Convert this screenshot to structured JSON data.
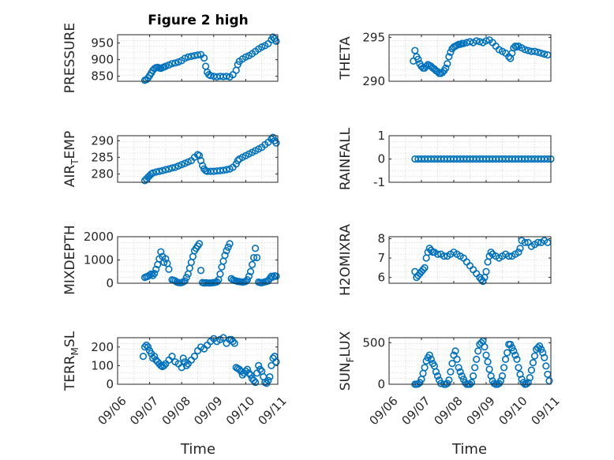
{
  "figure": {
    "title": "Figure 2 high",
    "xlabel": "Time",
    "marker_color": "#0072BD",
    "axis_color": "#262626",
    "grid_color": "#d9d9d9"
  },
  "chart_data": [
    {
      "type": "scatter",
      "ylabel": "PRESSURE",
      "xlim": [
        0,
        5
      ],
      "ylim": [
        835,
        975
      ],
      "yticks": [
        850,
        900,
        950
      ],
      "x": [
        0.85,
        0.9,
        0.95,
        1.0,
        1.05,
        1.1,
        1.15,
        1.2,
        1.25,
        1.3,
        1.35,
        1.4,
        1.45,
        1.5,
        1.6,
        1.7,
        1.8,
        1.9,
        2.0,
        2.1,
        2.2,
        2.3,
        2.4,
        2.5,
        2.6,
        2.7,
        2.75,
        2.8,
        2.85,
        2.9,
        3.0,
        3.1,
        3.2,
        3.3,
        3.4,
        3.5,
        3.6,
        3.7,
        3.75,
        3.8,
        3.9,
        4.0,
        4.1,
        4.2,
        4.3,
        4.4,
        4.5,
        4.6,
        4.7,
        4.8,
        4.85,
        4.9,
        4.95
      ],
      "y": [
        838,
        840,
        845,
        852,
        860,
        868,
        873,
        876,
        877,
        875,
        874,
        876,
        878,
        880,
        884,
        888,
        890,
        893,
        897,
        904,
        908,
        910,
        912,
        914,
        915,
        905,
        880,
        862,
        855,
        852,
        850,
        848,
        850,
        849,
        850,
        848,
        855,
        868,
        885,
        895,
        902,
        908,
        912,
        918,
        925,
        932,
        938,
        942,
        948,
        960,
        968,
        963,
        955
      ]
    },
    {
      "type": "scatter",
      "ylabel": "THETA",
      "xlim": [
        0,
        5
      ],
      "ylim": [
        290,
        295.3
      ],
      "yticks": [
        290,
        295
      ],
      "x": [
        0.75,
        0.8,
        0.85,
        0.9,
        0.95,
        1.0,
        1.05,
        1.1,
        1.15,
        1.2,
        1.25,
        1.3,
        1.35,
        1.4,
        1.45,
        1.5,
        1.55,
        1.6,
        1.65,
        1.7,
        1.75,
        1.8,
        1.85,
        1.9,
        1.95,
        2.0,
        2.05,
        2.1,
        2.15,
        2.2,
        2.25,
        2.3,
        2.4,
        2.5,
        2.6,
        2.7,
        2.8,
        2.9,
        3.0,
        3.1,
        3.2,
        3.3,
        3.4,
        3.5,
        3.6,
        3.7,
        3.75,
        3.8,
        3.85,
        3.9,
        3.95,
        4.0,
        4.1,
        4.2,
        4.3,
        4.4,
        4.5,
        4.6,
        4.7,
        4.8,
        4.9
      ],
      "y": [
        292.3,
        293.5,
        292.8,
        292.5,
        292.0,
        291.7,
        291.5,
        291.5,
        291.7,
        291.9,
        291.8,
        291.7,
        291.5,
        291.4,
        291.2,
        291.1,
        290.9,
        290.9,
        291.0,
        291.2,
        291.5,
        292.0,
        292.8,
        293.3,
        293.7,
        293.9,
        294.0,
        294.1,
        294.2,
        294.2,
        294.3,
        294.3,
        294.4,
        294.5,
        294.4,
        294.6,
        294.5,
        294.4,
        294.6,
        294.7,
        294.4,
        294.0,
        293.6,
        293.4,
        293.2,
        292.8,
        292.6,
        293.2,
        293.8,
        294.0,
        293.9,
        294.0,
        293.8,
        293.6,
        293.5,
        293.4,
        293.4,
        293.3,
        293.2,
        293.1,
        293.0
      ]
    },
    {
      "type": "scatter",
      "ylabel": "AIR_TEMP",
      "xlim": [
        0,
        5
      ],
      "ylim": [
        277.5,
        291.5
      ],
      "yticks": [
        280,
        285,
        290
      ],
      "x": [
        0.85,
        0.9,
        0.95,
        1.0,
        1.05,
        1.1,
        1.2,
        1.3,
        1.4,
        1.5,
        1.6,
        1.7,
        1.8,
        1.9,
        2.0,
        2.1,
        2.2,
        2.3,
        2.4,
        2.5,
        2.55,
        2.6,
        2.65,
        2.7,
        2.75,
        2.8,
        2.9,
        3.0,
        3.1,
        3.2,
        3.3,
        3.4,
        3.5,
        3.6,
        3.7,
        3.75,
        3.8,
        3.9,
        4.0,
        4.1,
        4.2,
        4.3,
        4.4,
        4.5,
        4.6,
        4.7,
        4.8,
        4.85,
        4.9,
        4.95
      ],
      "y": [
        278.0,
        278.5,
        279.0,
        279.5,
        280.0,
        280.3,
        280.6,
        280.8,
        281.0,
        281.3,
        281.5,
        281.8,
        282.0,
        282.4,
        282.8,
        283.2,
        283.6,
        284.0,
        285.0,
        285.8,
        285.5,
        284.0,
        282.5,
        281.5,
        281.0,
        280.8,
        280.8,
        280.8,
        280.9,
        281.0,
        281.1,
        281.3,
        281.5,
        282.0,
        283.0,
        284.0,
        284.5,
        285.0,
        285.5,
        286.0,
        286.5,
        287.0,
        287.5,
        288.0,
        288.8,
        289.5,
        290.5,
        291.0,
        290.0,
        289.3
      ]
    },
    {
      "type": "scatter",
      "ylabel": "RAINFALL",
      "xlim": [
        0,
        5
      ],
      "ylim": [
        -1,
        1
      ],
      "yticks": [
        -1,
        0,
        1
      ],
      "x": [
        0.8,
        0.9,
        1.0,
        1.1,
        1.2,
        1.3,
        1.4,
        1.5,
        1.6,
        1.7,
        1.8,
        1.9,
        2.0,
        2.1,
        2.2,
        2.3,
        2.4,
        2.5,
        2.6,
        2.7,
        2.8,
        2.9,
        3.0,
        3.1,
        3.2,
        3.3,
        3.4,
        3.5,
        3.6,
        3.7,
        3.8,
        3.9,
        4.0,
        4.1,
        4.2,
        4.3,
        4.4,
        4.5,
        4.6,
        4.7,
        4.8,
        4.9,
        5.0
      ],
      "y": [
        0,
        0,
        0,
        0,
        0,
        0,
        0,
        0,
        0,
        0,
        0,
        0,
        0,
        0,
        0,
        0,
        0,
        0,
        0,
        0,
        0,
        0,
        0,
        0,
        0,
        0,
        0,
        0,
        0,
        0,
        0,
        0,
        0,
        0,
        0,
        0,
        0,
        0,
        0,
        0,
        0,
        0,
        0
      ]
    },
    {
      "type": "scatter",
      "ylabel": "MIXDEPTH",
      "xlim": [
        0,
        5
      ],
      "ylim": [
        0,
        2000
      ],
      "yticks": [
        0,
        1000,
        2000
      ],
      "x": [
        0.85,
        0.9,
        0.95,
        1.0,
        1.05,
        1.1,
        1.15,
        1.2,
        1.25,
        1.3,
        1.35,
        1.4,
        1.45,
        1.5,
        1.55,
        1.6,
        1.7,
        1.75,
        1.8,
        1.85,
        1.9,
        1.95,
        2.0,
        2.05,
        2.1,
        2.15,
        2.2,
        2.25,
        2.3,
        2.35,
        2.4,
        2.45,
        2.5,
        2.55,
        2.6,
        2.65,
        2.7,
        2.75,
        2.8,
        2.85,
        2.9,
        2.95,
        3.0,
        3.05,
        3.1,
        3.15,
        3.2,
        3.25,
        3.3,
        3.35,
        3.4,
        3.45,
        3.5,
        3.55,
        3.6,
        3.65,
        3.7,
        3.75,
        3.8,
        3.85,
        3.9,
        3.95,
        4.0,
        4.05,
        4.1,
        4.15,
        4.2,
        4.25,
        4.3,
        4.35,
        4.4,
        4.45,
        4.5,
        4.55,
        4.6,
        4.65,
        4.7,
        4.75,
        4.8,
        4.85,
        4.9,
        4.95
      ],
      "y": [
        250,
        280,
        300,
        350,
        400,
        330,
        420,
        600,
        800,
        1050,
        1350,
        1150,
        900,
        1050,
        850,
        600,
        150,
        130,
        100,
        50,
        30,
        20,
        30,
        60,
        100,
        250,
        400,
        650,
        900,
        1150,
        1400,
        1500,
        1600,
        1700,
        550,
        30,
        10,
        20,
        15,
        10,
        10,
        20,
        30,
        40,
        60,
        150,
        400,
        700,
        950,
        1200,
        1400,
        1550,
        1700,
        200,
        150,
        120,
        100,
        80,
        70,
        60,
        50,
        60,
        80,
        150,
        300,
        500,
        800,
        1100,
        1500,
        1100,
        50,
        30,
        20,
        40,
        60,
        80,
        100,
        200,
        300,
        270,
        320,
        300
      ]
    },
    {
      "type": "scatter",
      "ylabel": "H2OMIXRA",
      "xlim": [
        0,
        5
      ],
      "ylim": [
        5.7,
        8.1
      ],
      "yticks": [
        6,
        7,
        8
      ],
      "x": [
        0.8,
        0.85,
        0.9,
        0.95,
        1.0,
        1.05,
        1.1,
        1.15,
        1.2,
        1.25,
        1.3,
        1.35,
        1.4,
        1.5,
        1.6,
        1.7,
        1.8,
        1.9,
        2.0,
        2.1,
        2.2,
        2.3,
        2.4,
        2.5,
        2.6,
        2.7,
        2.8,
        2.85,
        2.9,
        2.95,
        3.0,
        3.05,
        3.1,
        3.15,
        3.2,
        3.3,
        3.4,
        3.5,
        3.6,
        3.7,
        3.8,
        3.9,
        4.0,
        4.05,
        4.1,
        4.2,
        4.3,
        4.4,
        4.5,
        4.6,
        4.7,
        4.8,
        4.9
      ],
      "y": [
        6.3,
        6.0,
        6.1,
        6.2,
        6.3,
        6.4,
        6.5,
        7.0,
        7.3,
        7.5,
        7.4,
        7.3,
        7.3,
        7.2,
        7.2,
        7.1,
        7.1,
        7.2,
        7.3,
        7.2,
        7.1,
        7.0,
        6.8,
        6.6,
        6.4,
        6.2,
        6.0,
        5.9,
        5.8,
        6.0,
        6.3,
        6.8,
        7.1,
        7.3,
        7.2,
        7.1,
        7.0,
        7.1,
        7.2,
        7.1,
        7.1,
        7.2,
        7.3,
        7.5,
        7.9,
        7.8,
        7.8,
        7.6,
        7.7,
        7.8,
        7.8,
        7.9,
        7.8
      ]
    },
    {
      "type": "scatter",
      "ylabel": "TERR_MSL",
      "xlim": [
        0,
        5
      ],
      "ylim": [
        0,
        250
      ],
      "yticks": [
        0,
        100,
        200
      ],
      "x": [
        0.8,
        0.85,
        0.9,
        0.95,
        1.0,
        1.05,
        1.1,
        1.15,
        1.2,
        1.25,
        1.3,
        1.35,
        1.4,
        1.45,
        1.5,
        1.6,
        1.7,
        1.8,
        1.9,
        2.0,
        2.05,
        2.1,
        2.15,
        2.2,
        2.3,
        2.4,
        2.5,
        2.6,
        2.7,
        2.8,
        2.9,
        3.0,
        3.1,
        3.2,
        3.3,
        3.4,
        3.5,
        3.55,
        3.6,
        3.65,
        3.7,
        3.75,
        3.8,
        3.85,
        3.9,
        3.95,
        4.0,
        4.05,
        4.1,
        4.15,
        4.2,
        4.25,
        4.3,
        4.35,
        4.4,
        4.45,
        4.5,
        4.55,
        4.6,
        4.65,
        4.7,
        4.75,
        4.8,
        4.85,
        4.9,
        4.95
      ],
      "y": [
        150,
        200,
        210,
        200,
        180,
        165,
        140,
        150,
        130,
        120,
        110,
        100,
        95,
        100,
        110,
        130,
        150,
        120,
        110,
        90,
        140,
        120,
        100,
        110,
        130,
        150,
        180,
        200,
        190,
        210,
        230,
        245,
        230,
        240,
        250,
        220,
        240,
        240,
        230,
        220,
        90,
        85,
        80,
        70,
        50,
        60,
        70,
        80,
        60,
        50,
        30,
        20,
        10,
        60,
        100,
        80,
        70,
        40,
        10,
        5,
        20,
        40,
        100,
        140,
        150,
        120
      ]
    },
    {
      "type": "scatter",
      "ylabel": "SUN_FLUX",
      "xlim": [
        0,
        5
      ],
      "ylim": [
        0,
        560
      ],
      "yticks": [
        0,
        500
      ],
      "x": [
        0.8,
        0.85,
        0.9,
        0.95,
        1.0,
        1.05,
        1.1,
        1.15,
        1.2,
        1.25,
        1.3,
        1.35,
        1.4,
        1.45,
        1.5,
        1.55,
        1.6,
        1.7,
        1.75,
        1.8,
        1.85,
        1.9,
        1.95,
        2.0,
        2.05,
        2.1,
        2.15,
        2.2,
        2.25,
        2.3,
        2.35,
        2.4,
        2.45,
        2.5,
        2.55,
        2.6,
        2.65,
        2.7,
        2.75,
        2.8,
        2.85,
        2.9,
        2.95,
        3.0,
        3.05,
        3.1,
        3.15,
        3.2,
        3.25,
        3.3,
        3.35,
        3.4,
        3.45,
        3.5,
        3.55,
        3.6,
        3.65,
        3.7,
        3.75,
        3.8,
        3.85,
        3.9,
        3.95,
        4.0,
        4.05,
        4.1,
        4.15,
        4.2,
        4.25,
        4.3,
        4.35,
        4.4,
        4.45,
        4.5,
        4.55,
        4.6,
        4.65,
        4.7,
        4.75,
        4.8,
        4.85,
        4.9,
        4.95
      ],
      "y": [
        0,
        0,
        5,
        20,
        60,
        130,
        200,
        280,
        320,
        350,
        300,
        250,
        220,
        150,
        100,
        50,
        10,
        0,
        0,
        10,
        50,
        150,
        250,
        350,
        400,
        300,
        200,
        150,
        100,
        60,
        20,
        0,
        0,
        0,
        20,
        100,
        200,
        300,
        400,
        480,
        500,
        520,
        450,
        350,
        270,
        180,
        100,
        40,
        10,
        0,
        0,
        10,
        40,
        100,
        200,
        300,
        380,
        480,
        480,
        440,
        400,
        350,
        300,
        200,
        120,
        60,
        20,
        0,
        5,
        20,
        80,
        170,
        260,
        340,
        420,
        440,
        460,
        420,
        380,
        320,
        220,
        120,
        40
      ]
    }
  ],
  "xticks": [
    "09/06",
    "09/07",
    "09/08",
    "09/09",
    "09/10",
    "09/11"
  ]
}
